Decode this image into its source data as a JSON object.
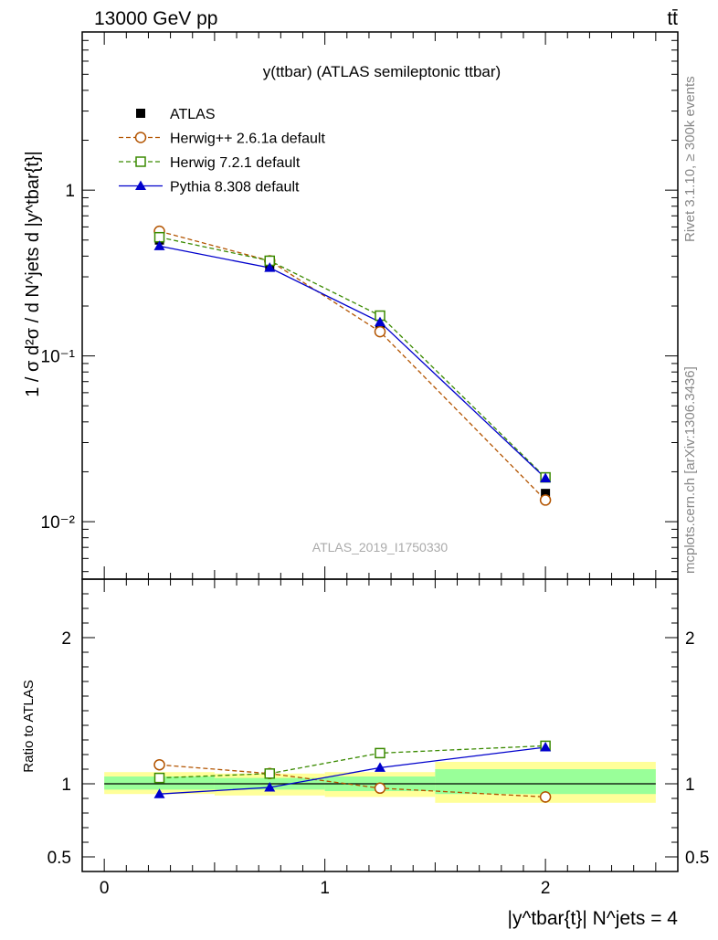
{
  "header": {
    "left": "13000 GeV pp",
    "right": "tt̄"
  },
  "side_labels": {
    "rivet": "Rivet 3.1.10, ≥ 300k events",
    "mcplots": "mcplots.cern.ch [arXiv:1306.3436]"
  },
  "chart_data": {
    "type": "line",
    "title": "y(ttbar) (ATLAS semileptonic ttbar)",
    "watermark": "ATLAS_2019_I1750330",
    "ylabel": "1 / σ d²σ / d N^jets d |y^tbar{t}|",
    "xlabel": "|y^tbar{t}| N^jets = 4",
    "xlim": [
      -0.1,
      2.6
    ],
    "ylim": [
      0.0045,
      9
    ],
    "yscale": "log",
    "ytick_labels": [
      "1",
      "10⁻¹",
      "10⁻²"
    ],
    "x": [
      0.25,
      0.75,
      1.25,
      2.0
    ],
    "bin_edges": [
      0,
      0.5,
      1.0,
      1.5,
      2.5
    ],
    "colors": {
      "atlas": "#000000",
      "herwig261": "#b35400",
      "herwig721": "#3a8a00",
      "pythia": "#0000cc",
      "band_outer": "#ffff99",
      "band_inner": "#99ff99"
    },
    "legend": [
      {
        "key": "atlas",
        "label": "ATLAS"
      },
      {
        "key": "herwig261",
        "label": "Herwig++ 2.6.1a default"
      },
      {
        "key": "herwig721",
        "label": "Herwig 7.2.1 default"
      },
      {
        "key": "pythia",
        "label": "Pythia 8.308 default"
      }
    ],
    "series": [
      {
        "key": "atlas",
        "name": "ATLAS",
        "marker": "square-filled",
        "values": [
          0.5,
          0.35,
          0.145,
          0.0148
        ]
      },
      {
        "key": "herwig261",
        "name": "Herwig++ 2.6.1a default",
        "marker": "circle-open",
        "dash": true,
        "values": [
          0.565,
          0.375,
          0.14,
          0.0135
        ]
      },
      {
        "key": "herwig721",
        "name": "Herwig 7.2.1 default",
        "marker": "square-open",
        "dash": true,
        "values": [
          0.52,
          0.375,
          0.175,
          0.0185
        ]
      },
      {
        "key": "pythia",
        "name": "Pythia 8.308 default",
        "marker": "triangle-filled",
        "dash": false,
        "values": [
          0.46,
          0.34,
          0.16,
          0.0183
        ]
      }
    ],
    "ratio": {
      "ylabel": "Ratio to ATLAS",
      "ylim": [
        0.4,
        2.4
      ],
      "yticks": [
        0.5,
        1,
        2
      ],
      "ytick_labels": [
        "0.5",
        "1",
        "2"
      ],
      "xticks": [
        0,
        1,
        2
      ],
      "xtick_labels": [
        "0",
        "1",
        "2"
      ],
      "band_outer": [
        [
          0.93,
          1.08
        ],
        [
          0.92,
          1.07
        ],
        [
          0.91,
          1.08
        ],
        [
          0.87,
          1.15
        ]
      ],
      "band_inner": [
        [
          0.96,
          1.05
        ],
        [
          0.96,
          1.04
        ],
        [
          0.95,
          1.05
        ],
        [
          0.93,
          1.1
        ]
      ],
      "series": [
        {
          "key": "herwig261",
          "values": [
            1.13,
            1.07,
            0.97,
            0.91
          ]
        },
        {
          "key": "herwig721",
          "values": [
            1.04,
            1.07,
            1.21,
            1.26
          ]
        },
        {
          "key": "pythia",
          "values": [
            0.93,
            0.975,
            1.11,
            1.25
          ]
        }
      ]
    }
  }
}
